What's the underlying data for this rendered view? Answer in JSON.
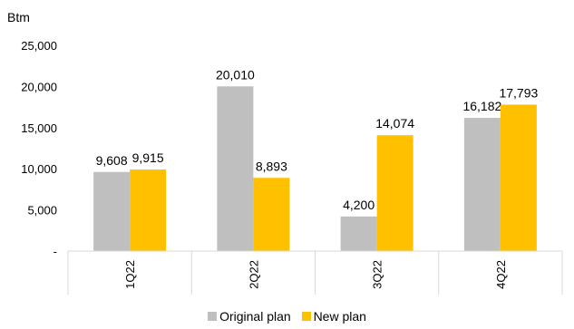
{
  "chart_data": {
    "type": "bar",
    "unit_label": "Btm",
    "categories": [
      "1Q22",
      "2Q22",
      "3Q22",
      "4Q22"
    ],
    "series": [
      {
        "name": "Original plan",
        "color": "#BFBFBF",
        "values": [
          9608,
          20010,
          4200,
          16182
        ],
        "labels": [
          "9,608",
          "20,010",
          "4,200",
          "16,182"
        ]
      },
      {
        "name": "New plan",
        "color": "#FFC000",
        "values": [
          9915,
          8893,
          14074,
          17793
        ],
        "labels": [
          "9,915",
          "8,893",
          "14,074",
          "17,793"
        ]
      }
    ],
    "ylim": [
      0,
      25000
    ],
    "yticks": [
      0,
      5000,
      10000,
      15000,
      20000,
      25000
    ],
    "ytick_labels": [
      "-",
      "5,000",
      "10,000",
      "15,000",
      "20,000",
      "25,000"
    ],
    "grid": false,
    "legend": "bottom"
  }
}
